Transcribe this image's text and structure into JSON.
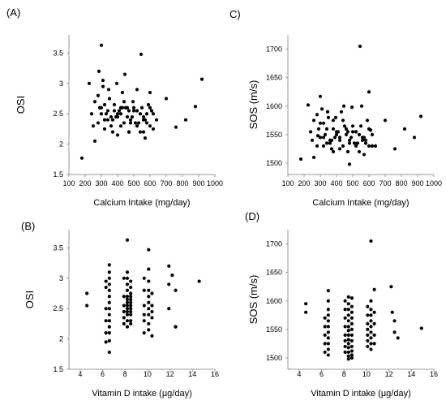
{
  "chart_data": [
    {
      "id": "A",
      "panel_label": "(A)",
      "type": "scatter",
      "xlabel": "Calcium Intake  (mg/day)",
      "ylabel": "OSI",
      "xlim": [
        100,
        1000
      ],
      "ylim": [
        1.5,
        3.8
      ],
      "xticks": [
        100,
        200,
        300,
        400,
        500,
        600,
        700,
        800,
        900,
        1000
      ],
      "yticks": [
        1.5,
        2,
        2.5,
        3,
        3.5
      ],
      "x": [
        180,
        225,
        260,
        285,
        300,
        320,
        345,
        370,
        395,
        420,
        445,
        470,
        495,
        520,
        545,
        570,
        600,
        640,
        700,
        760,
        820,
        880,
        920,
        240,
        280,
        300,
        320,
        340,
        360,
        380,
        400,
        420,
        440,
        460,
        480,
        500,
        520,
        540,
        560,
        580,
        600,
        620,
        260,
        300,
        340,
        380,
        420,
        460,
        500,
        540,
        580,
        620,
        280,
        320,
        360,
        400,
        440,
        480,
        520,
        560,
        600,
        250,
        290,
        330,
        370,
        410,
        450,
        490,
        530,
        570,
        610,
        310,
        350,
        390,
        430,
        470,
        510,
        550,
        590,
        310,
        400,
        560,
        470,
        430
      ],
      "y": [
        1.77,
        3.0,
        2.05,
        3.2,
        3.63,
        2.4,
        2.9,
        2.2,
        3.0,
        2.6,
        3.15,
        2.2,
        2.7,
        2.9,
        3.48,
        2.1,
        2.85,
        2.4,
        2.75,
        2.28,
        2.4,
        2.62,
        3.07,
        2.5,
        2.35,
        2.6,
        2.25,
        2.55,
        2.3,
        2.65,
        2.45,
        2.5,
        2.35,
        2.6,
        2.4,
        2.55,
        2.3,
        2.5,
        2.45,
        2.35,
        2.6,
        2.5,
        2.7,
        2.5,
        2.4,
        2.55,
        2.3,
        2.45,
        2.6,
        2.2,
        2.5,
        2.25,
        2.8,
        2.65,
        2.45,
        2.5,
        2.7,
        2.35,
        2.55,
        2.4,
        2.3,
        2.3,
        2.6,
        2.5,
        2.4,
        2.55,
        2.6,
        2.45,
        2.35,
        2.4,
        2.55,
        2.95,
        2.75,
        2.45,
        2.85,
        2.55,
        2.35,
        2.6,
        2.65,
        3.05,
        2.15,
        2.2,
        2.2,
        2.6
      ]
    },
    {
      "id": "C",
      "panel_label": "C)",
      "type": "scatter",
      "xlabel": "Calcium Intake  (mg/day)",
      "ylabel": "SOS (m/s)",
      "xlim": [
        100,
        1000
      ],
      "ylim": [
        1480,
        1725
      ],
      "xticks": [
        100,
        200,
        300,
        400,
        500,
        600,
        700,
        800,
        900,
        1000
      ],
      "yticks": [
        1500,
        1550,
        1600,
        1650,
        1700
      ],
      "x": [
        180,
        225,
        260,
        285,
        300,
        320,
        345,
        370,
        395,
        420,
        445,
        470,
        495,
        520,
        545,
        570,
        600,
        640,
        700,
        760,
        820,
        880,
        920,
        240,
        280,
        300,
        320,
        340,
        360,
        380,
        400,
        420,
        440,
        460,
        480,
        500,
        520,
        540,
        560,
        580,
        600,
        620,
        260,
        300,
        340,
        380,
        420,
        460,
        500,
        540,
        580,
        620,
        280,
        320,
        360,
        400,
        440,
        480,
        520,
        560,
        600,
        250,
        290,
        330,
        370,
        410,
        450,
        490,
        530,
        570,
        610,
        310,
        350,
        390,
        430,
        470,
        510,
        550,
        590,
        555,
        480,
        380
      ],
      "y": [
        1507,
        1602,
        1510,
        1548,
        1617,
        1530,
        1590,
        1525,
        1580,
        1540,
        1600,
        1520,
        1598,
        1555,
        1705,
        1515,
        1625,
        1530,
        1575,
        1525,
        1560,
        1545,
        1582,
        1555,
        1530,
        1570,
        1545,
        1560,
        1535,
        1575,
        1550,
        1545,
        1530,
        1560,
        1540,
        1555,
        1530,
        1550,
        1545,
        1535,
        1560,
        1550,
        1575,
        1545,
        1535,
        1560,
        1525,
        1550,
        1565,
        1520,
        1540,
        1530,
        1585,
        1570,
        1540,
        1555,
        1575,
        1535,
        1555,
        1540,
        1530,
        1540,
        1560,
        1550,
        1540,
        1555,
        1565,
        1545,
        1535,
        1545,
        1558,
        1595,
        1580,
        1545,
        1590,
        1555,
        1535,
        1565,
        1575,
        1600,
        1498,
        1520
      ]
    },
    {
      "id": "B",
      "panel_label": "(B)",
      "type": "scatter",
      "xlabel": "Vitamin D intake (µg/day)",
      "ylabel": "OSI",
      "xlim": [
        3,
        16
      ],
      "ylim": [
        1.5,
        3.8
      ],
      "xticks": [
        4,
        6,
        8,
        10,
        12,
        14,
        16
      ],
      "yticks": [
        1.5,
        2,
        2.5,
        3,
        3.5
      ],
      "x": [
        4.6,
        4.6,
        6.3,
        6.3,
        6.3,
        6.3,
        6.3,
        6.3,
        6.6,
        6.6,
        6.6,
        6.6,
        6.6,
        6.6,
        6.6,
        6.6,
        6.6,
        6.6,
        6.6,
        6.6,
        6.6,
        6.6,
        7.9,
        7.9,
        7.9,
        7.9,
        7.9,
        7.9,
        8.2,
        8.2,
        8.2,
        8.2,
        8.2,
        8.2,
        8.2,
        8.2,
        8.2,
        8.2,
        8.2,
        8.2,
        8.2,
        8.2,
        8.5,
        8.5,
        8.5,
        8.5,
        8.5,
        8.5,
        8.5,
        8.5,
        8.5,
        8.5,
        8.5,
        8.5,
        9.7,
        9.7,
        9.7,
        9.7,
        9.7,
        9.7,
        10.1,
        10.1,
        10.1,
        10.1,
        10.1,
        10.1,
        10.1,
        10.1,
        10.1,
        10.1,
        10.4,
        10.4,
        10.4,
        10.4,
        10.4,
        11.9,
        11.9,
        11.9,
        12.2,
        12.5,
        12.5,
        12.5,
        14.6
      ],
      "y": [
        2.75,
        2.55,
        2.95,
        2.85,
        2.5,
        2.3,
        2.1,
        1.95,
        3.22,
        3.1,
        3.0,
        2.9,
        2.8,
        2.7,
        2.6,
        2.5,
        2.4,
        2.3,
        2.2,
        2.1,
        1.97,
        1.78,
        3.0,
        2.7,
        2.55,
        2.45,
        2.35,
        2.25,
        3.63,
        3.1,
        3.0,
        2.9,
        2.8,
        2.7,
        2.65,
        2.6,
        2.55,
        2.5,
        2.45,
        2.4,
        2.3,
        2.2,
        2.95,
        2.85,
        2.75,
        2.7,
        2.65,
        2.6,
        2.55,
        2.5,
        2.45,
        2.4,
        2.3,
        2.25,
        3.0,
        2.8,
        2.55,
        2.4,
        2.3,
        2.1,
        3.47,
        3.15,
        2.95,
        2.8,
        2.7,
        2.6,
        2.5,
        2.4,
        2.25,
        2.15,
        2.75,
        2.55,
        2.45,
        2.35,
        2.05,
        3.2,
        2.9,
        2.5,
        3.05,
        2.8,
        2.2,
        2.2,
        2.95
      ]
    },
    {
      "id": "D",
      "panel_label": "(D)",
      "type": "scatter",
      "xlabel": "Vitamin D intake (µg/day)",
      "ylabel": "SOS (m/s)",
      "xlim": [
        3,
        16
      ],
      "ylim": [
        1480,
        1725
      ],
      "xticks": [
        4,
        6,
        8,
        10,
        12,
        14,
        16
      ],
      "yticks": [
        1500,
        1550,
        1600,
        1650,
        1700
      ],
      "x": [
        4.6,
        4.6,
        6.3,
        6.3,
        6.3,
        6.3,
        6.3,
        6.6,
        6.6,
        6.6,
        6.6,
        6.6,
        6.6,
        6.6,
        6.6,
        6.6,
        6.6,
        6.6,
        8.1,
        8.1,
        8.1,
        8.1,
        8.1,
        8.1,
        8.1,
        8.1,
        8.4,
        8.4,
        8.4,
        8.4,
        8.4,
        8.4,
        8.4,
        8.4,
        8.4,
        8.4,
        8.4,
        8.4,
        8.4,
        8.4,
        8.7,
        8.7,
        8.7,
        8.7,
        8.7,
        8.7,
        8.7,
        8.7,
        8.7,
        8.7,
        8.7,
        8.7,
        10.1,
        10.1,
        10.1,
        10.1,
        10.1,
        10.1,
        10.1,
        10.4,
        10.4,
        10.4,
        10.4,
        10.4,
        10.4,
        10.4,
        10.4,
        10.4,
        10.4,
        10.7,
        10.7,
        10.7,
        10.7,
        10.7,
        12.2,
        12.3,
        12.5,
        12.5,
        12.8,
        14.9
      ],
      "y": [
        1595,
        1580,
        1570,
        1555,
        1540,
        1525,
        1510,
        1618,
        1600,
        1585,
        1575,
        1565,
        1555,
        1545,
        1535,
        1525,
        1515,
        1505,
        1600,
        1585,
        1570,
        1555,
        1540,
        1530,
        1520,
        1510,
        1607,
        1595,
        1585,
        1575,
        1565,
        1555,
        1548,
        1540,
        1532,
        1525,
        1518,
        1510,
        1503,
        1498,
        1605,
        1590,
        1580,
        1570,
        1560,
        1550,
        1540,
        1530,
        1520,
        1512,
        1505,
        1500,
        1590,
        1575,
        1560,
        1550,
        1540,
        1530,
        1520,
        1705,
        1600,
        1585,
        1575,
        1565,
        1555,
        1545,
        1535,
        1525,
        1515,
        1620,
        1580,
        1560,
        1540,
        1525,
        1625,
        1580,
        1565,
        1545,
        1535,
        1552
      ]
    }
  ]
}
